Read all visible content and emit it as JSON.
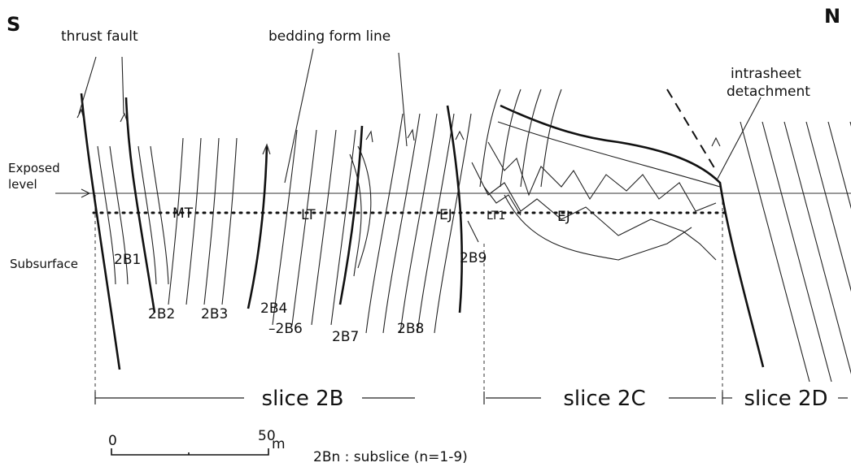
{
  "compass": {
    "south": "S",
    "north": "N"
  },
  "annotations": {
    "thrust_fault": "thrust fault",
    "bedding_form_line": "bedding form line",
    "intrasheet_detachment": [
      "intrasheet",
      "detachment"
    ],
    "exposed_level": [
      "Exposed",
      "level"
    ],
    "subsurface": "Subsurface"
  },
  "horizon_labels": [
    "MT",
    "LT",
    "EJ",
    "LT1",
    "EJ"
  ],
  "subslices": [
    "2B1",
    "2B2",
    "2B3",
    "2B4",
    "–2B6",
    "2B7",
    "2B8",
    "2B9"
  ],
  "slices": [
    "slice 2B",
    "slice 2C",
    "slice 2D"
  ],
  "scale": {
    "start": "0",
    "end": "50",
    "unit": "m"
  },
  "legend": "2Bn : subslice (n=1-9)"
}
